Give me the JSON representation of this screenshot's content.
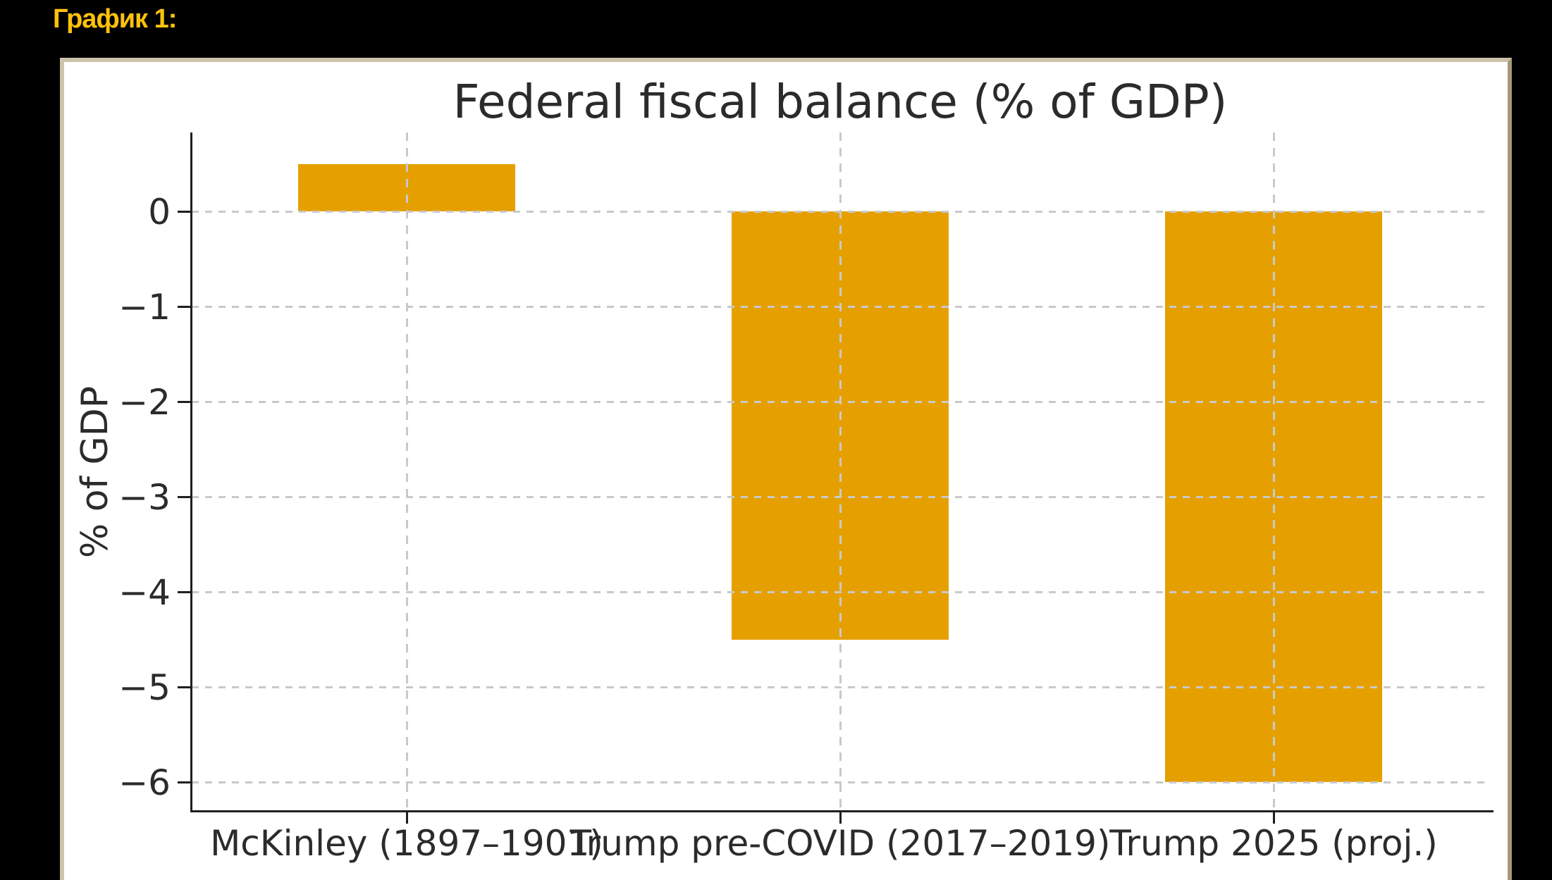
{
  "page": {
    "background": "#000000",
    "caption": "График 1:",
    "caption_color": "#FFC20A"
  },
  "chart_data": {
    "type": "bar",
    "title": "Federal fiscal balance (% of GDP)",
    "xlabel": "",
    "ylabel": "% of GDP",
    "categories": [
      "McKinley (1897–1901)",
      "Trump pre-COVID (2017–2019)",
      "Trump 2025 (proj.)"
    ],
    "values": [
      0.5,
      -4.5,
      -6.0
    ],
    "yticks": [
      0,
      -1,
      -2,
      -3,
      -4,
      -5,
      -6
    ],
    "ytick_labels": [
      "0",
      "−1",
      "−2",
      "−3",
      "−4",
      "−5",
      "−6"
    ],
    "ylim": [
      -6.3,
      0.83
    ],
    "grid": "dashed",
    "grid_color": "#c9c9c9",
    "bar_color": "#E5A000",
    "bar_width_fraction": 0.5,
    "plot_background": "#ffffff",
    "legend": null
  }
}
